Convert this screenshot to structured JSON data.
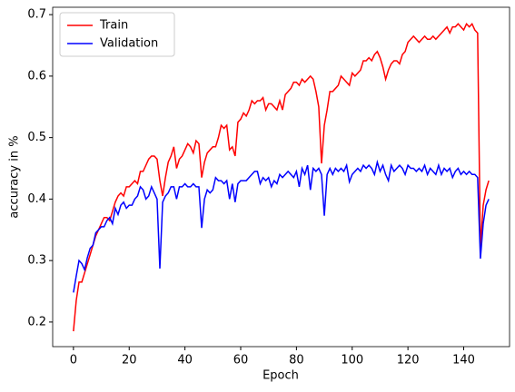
{
  "chart_data": {
    "type": "line",
    "xlabel": "Epoch",
    "ylabel": "accuracy in %",
    "x": [
      0,
      1,
      2,
      3,
      4,
      5,
      6,
      7,
      8,
      9,
      10,
      11,
      12,
      13,
      14,
      15,
      16,
      17,
      18,
      19,
      20,
      21,
      22,
      23,
      24,
      25,
      26,
      27,
      28,
      29,
      30,
      31,
      32,
      33,
      34,
      35,
      36,
      37,
      38,
      39,
      40,
      41,
      42,
      43,
      44,
      45,
      46,
      47,
      48,
      49,
      50,
      51,
      52,
      53,
      54,
      55,
      56,
      57,
      58,
      59,
      60,
      61,
      62,
      63,
      64,
      65,
      66,
      67,
      68,
      69,
      70,
      71,
      72,
      73,
      74,
      75,
      76,
      77,
      78,
      79,
      80,
      81,
      82,
      83,
      84,
      85,
      86,
      87,
      88,
      89,
      90,
      91,
      92,
      93,
      94,
      95,
      96,
      97,
      98,
      99,
      100,
      101,
      102,
      103,
      104,
      105,
      106,
      107,
      108,
      109,
      110,
      111,
      112,
      113,
      114,
      115,
      116,
      117,
      118,
      119,
      120,
      121,
      122,
      123,
      124,
      125,
      126,
      127,
      128,
      129,
      130,
      131,
      132,
      133,
      134,
      135,
      136,
      137,
      138,
      139,
      140,
      141,
      142,
      143,
      144,
      145,
      146,
      147,
      148,
      149
    ],
    "series": [
      {
        "name": "Train",
        "color": "#ff0000",
        "values": [
          0.185,
          0.235,
          0.265,
          0.265,
          0.28,
          0.295,
          0.31,
          0.325,
          0.34,
          0.35,
          0.36,
          0.37,
          0.37,
          0.365,
          0.38,
          0.395,
          0.405,
          0.41,
          0.405,
          0.42,
          0.42,
          0.425,
          0.43,
          0.425,
          0.445,
          0.445,
          0.455,
          0.465,
          0.47,
          0.47,
          0.465,
          0.43,
          0.405,
          0.435,
          0.46,
          0.47,
          0.485,
          0.45,
          0.465,
          0.47,
          0.48,
          0.49,
          0.485,
          0.475,
          0.495,
          0.49,
          0.435,
          0.46,
          0.475,
          0.48,
          0.485,
          0.485,
          0.5,
          0.52,
          0.515,
          0.52,
          0.48,
          0.485,
          0.47,
          0.525,
          0.53,
          0.54,
          0.535,
          0.545,
          0.56,
          0.555,
          0.56,
          0.56,
          0.565,
          0.545,
          0.555,
          0.555,
          0.55,
          0.545,
          0.56,
          0.545,
          0.57,
          0.575,
          0.58,
          0.59,
          0.59,
          0.585,
          0.595,
          0.59,
          0.595,
          0.6,
          0.595,
          0.575,
          0.55,
          0.458,
          0.52,
          0.545,
          0.575,
          0.575,
          0.58,
          0.585,
          0.6,
          0.595,
          0.59,
          0.585,
          0.605,
          0.6,
          0.605,
          0.61,
          0.625,
          0.625,
          0.63,
          0.625,
          0.635,
          0.64,
          0.63,
          0.615,
          0.595,
          0.61,
          0.62,
          0.625,
          0.625,
          0.62,
          0.635,
          0.64,
          0.655,
          0.66,
          0.665,
          0.66,
          0.655,
          0.66,
          0.665,
          0.66,
          0.66,
          0.665,
          0.66,
          0.665,
          0.67,
          0.675,
          0.68,
          0.67,
          0.68,
          0.68,
          0.685,
          0.68,
          0.675,
          0.685,
          0.68,
          0.685,
          0.675,
          0.67,
          0.32,
          0.39,
          0.415,
          0.43
        ]
      },
      {
        "name": "Validation",
        "color": "#0000ff",
        "values": [
          0.248,
          0.275,
          0.3,
          0.295,
          0.285,
          0.305,
          0.32,
          0.325,
          0.345,
          0.35,
          0.355,
          0.355,
          0.365,
          0.37,
          0.36,
          0.385,
          0.375,
          0.39,
          0.395,
          0.385,
          0.39,
          0.39,
          0.4,
          0.405,
          0.42,
          0.415,
          0.4,
          0.405,
          0.42,
          0.41,
          0.4,
          0.287,
          0.395,
          0.405,
          0.41,
          0.42,
          0.42,
          0.4,
          0.42,
          0.42,
          0.425,
          0.42,
          0.42,
          0.425,
          0.42,
          0.42,
          0.353,
          0.4,
          0.415,
          0.41,
          0.415,
          0.435,
          0.43,
          0.43,
          0.425,
          0.43,
          0.4,
          0.425,
          0.395,
          0.425,
          0.43,
          0.43,
          0.43,
          0.435,
          0.44,
          0.445,
          0.445,
          0.425,
          0.435,
          0.43,
          0.435,
          0.42,
          0.43,
          0.425,
          0.44,
          0.435,
          0.44,
          0.445,
          0.44,
          0.435,
          0.445,
          0.42,
          0.45,
          0.44,
          0.455,
          0.415,
          0.45,
          0.445,
          0.45,
          0.44,
          0.373,
          0.44,
          0.45,
          0.44,
          0.45,
          0.445,
          0.45,
          0.445,
          0.455,
          0.428,
          0.44,
          0.445,
          0.45,
          0.445,
          0.455,
          0.45,
          0.455,
          0.45,
          0.44,
          0.46,
          0.445,
          0.455,
          0.44,
          0.43,
          0.455,
          0.445,
          0.45,
          0.455,
          0.45,
          0.44,
          0.455,
          0.45,
          0.45,
          0.445,
          0.45,
          0.445,
          0.455,
          0.44,
          0.45,
          0.445,
          0.44,
          0.455,
          0.44,
          0.45,
          0.445,
          0.45,
          0.435,
          0.445,
          0.45,
          0.44,
          0.445,
          0.44,
          0.445,
          0.44,
          0.44,
          0.435,
          0.303,
          0.36,
          0.39,
          0.4
        ]
      }
    ],
    "xlim": [
      -7.45,
      156.45
    ],
    "xticks": [
      0,
      20,
      40,
      60,
      80,
      100,
      120,
      140
    ],
    "ylim": [
      0.16,
      0.712
    ],
    "yticks": [
      0.2,
      0.3,
      0.4,
      0.5,
      0.6,
      0.7
    ],
    "legend": "upper left"
  }
}
